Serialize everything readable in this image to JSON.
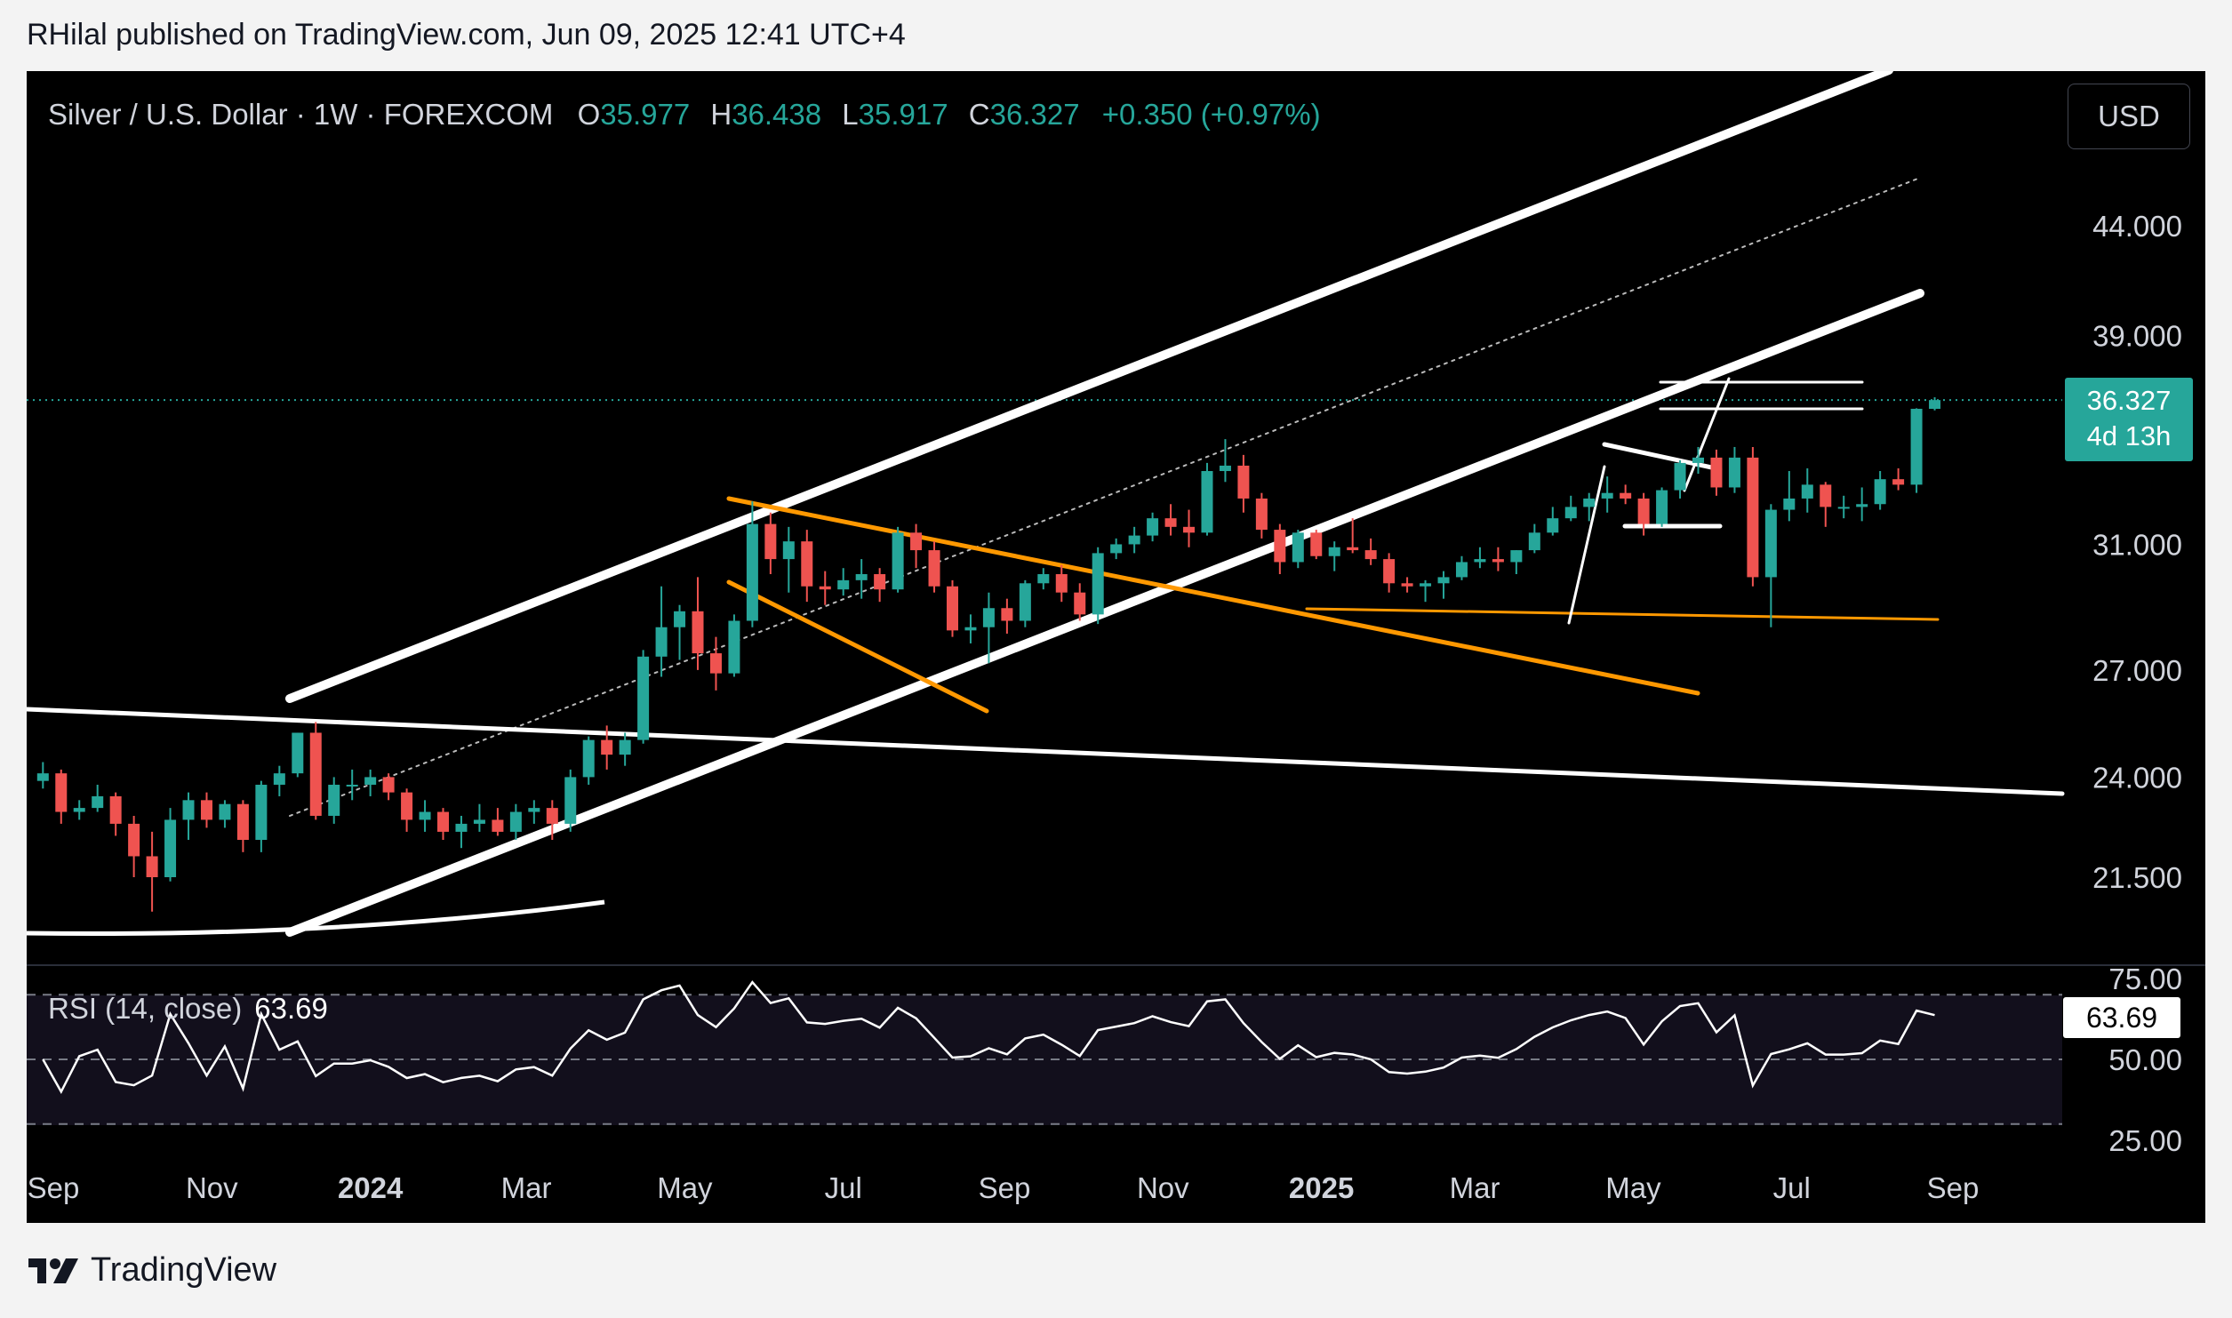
{
  "header": {
    "text": "RHilal published on TradingView.com, Jun 09, 2025 12:41 UTC+4"
  },
  "legend": {
    "symbol": "Silver / U.S. Dollar · 1W · FOREXCOM",
    "o_key": "O",
    "o_val": "35.977",
    "h_key": "H",
    "h_val": "36.438",
    "l_key": "L",
    "l_val": "35.917",
    "c_key": "C",
    "c_val": "36.327",
    "change": "+0.350 (+0.97%)"
  },
  "toolbar": {
    "currency": "USD"
  },
  "price_tag": {
    "price": "36.327",
    "countdown": "4d 13h"
  },
  "rsi": {
    "legend": "RSI (14, close)",
    "value": "63.69"
  },
  "footer": {
    "brand": "TradingView"
  },
  "colors": {
    "up": "#26a69a",
    "down": "#ef5350",
    "channel": "#ffffff",
    "wedge": "#ff9800",
    "background": "#000000"
  },
  "chart_data": {
    "type": "candlestick",
    "interval": "1W",
    "symbol": "Silver / U.S. Dollar",
    "exchange": "FOREXCOM",
    "price_axis": {
      "labels": [
        "44.000",
        "39.000",
        "36.327",
        "31.000",
        "27.000",
        "24.000",
        "21.500"
      ],
      "scale": "log"
    },
    "time_axis": {
      "labels": [
        "Sep",
        "Nov",
        "2024",
        "Mar",
        "May",
        "Jul",
        "Sep",
        "Nov",
        "2025",
        "Mar",
        "May",
        "Jul",
        "Sep"
      ]
    },
    "rsi_axis": {
      "labels": [
        "75.00",
        "50.00",
        "25.00"
      ]
    },
    "series": [
      {
        "name": "",
        "start": "2023-08-28",
        "step_days": 7,
        "candles": [
          [
            23.9,
            24.4,
            23.7,
            24.1
          ],
          [
            24.1,
            24.2,
            22.8,
            23.1
          ],
          [
            23.1,
            23.4,
            22.9,
            23.2
          ],
          [
            23.2,
            23.8,
            23.1,
            23.5
          ],
          [
            23.5,
            23.6,
            22.5,
            22.8
          ],
          [
            22.8,
            23.0,
            21.5,
            22.0
          ],
          [
            22.0,
            22.6,
            20.7,
            21.5
          ],
          [
            21.5,
            23.2,
            21.4,
            22.9
          ],
          [
            22.9,
            23.6,
            22.4,
            23.4
          ],
          [
            23.4,
            23.6,
            22.7,
            22.9
          ],
          [
            22.9,
            23.4,
            22.7,
            23.3
          ],
          [
            23.3,
            23.4,
            22.1,
            22.4
          ],
          [
            22.4,
            23.9,
            22.1,
            23.8
          ],
          [
            23.8,
            24.3,
            23.5,
            24.1
          ],
          [
            24.1,
            25.2,
            24.0,
            25.2
          ],
          [
            25.2,
            25.5,
            22.9,
            23.0
          ],
          [
            23.0,
            24.0,
            22.8,
            23.8
          ],
          [
            23.8,
            24.2,
            23.4,
            23.8
          ],
          [
            23.8,
            24.2,
            23.5,
            24.0
          ],
          [
            24.0,
            24.1,
            23.4,
            23.6
          ],
          [
            23.6,
            23.7,
            22.6,
            22.9
          ],
          [
            22.9,
            23.4,
            22.6,
            23.1
          ],
          [
            23.1,
            23.2,
            22.4,
            22.6
          ],
          [
            22.6,
            23.0,
            22.2,
            22.8
          ],
          [
            22.8,
            23.3,
            22.6,
            22.9
          ],
          [
            22.9,
            23.2,
            22.5,
            22.6
          ],
          [
            22.6,
            23.3,
            22.4,
            23.1
          ],
          [
            23.1,
            23.4,
            22.8,
            23.2
          ],
          [
            23.2,
            23.4,
            22.4,
            22.8
          ],
          [
            22.8,
            24.2,
            22.6,
            24.0
          ],
          [
            24.0,
            25.1,
            23.8,
            25.0
          ],
          [
            25.0,
            25.4,
            24.2,
            24.6
          ],
          [
            24.6,
            25.2,
            24.3,
            25.0
          ],
          [
            25.0,
            27.6,
            24.9,
            27.4
          ],
          [
            27.4,
            29.6,
            26.8,
            28.3
          ],
          [
            28.3,
            29.0,
            27.3,
            28.8
          ],
          [
            28.8,
            29.9,
            27.0,
            27.5
          ],
          [
            27.5,
            28.0,
            26.4,
            26.9
          ],
          [
            26.9,
            28.7,
            26.8,
            28.5
          ],
          [
            28.5,
            32.5,
            28.3,
            31.7
          ],
          [
            31.7,
            32.1,
            30.0,
            30.5
          ],
          [
            30.5,
            31.6,
            29.4,
            31.1
          ],
          [
            31.1,
            31.5,
            29.1,
            29.6
          ],
          [
            29.6,
            30.1,
            29.0,
            29.5
          ],
          [
            29.5,
            30.2,
            29.3,
            29.8
          ],
          [
            29.8,
            30.5,
            29.2,
            30.0
          ],
          [
            30.0,
            30.2,
            29.1,
            29.5
          ],
          [
            29.5,
            31.6,
            29.4,
            31.4
          ],
          [
            31.4,
            31.7,
            30.2,
            30.8
          ],
          [
            30.8,
            31.1,
            29.4,
            29.6
          ],
          [
            29.6,
            29.8,
            28.0,
            28.2
          ],
          [
            28.2,
            28.7,
            27.8,
            28.3
          ],
          [
            28.3,
            29.4,
            27.2,
            28.9
          ],
          [
            28.9,
            29.2,
            28.1,
            28.5
          ],
          [
            28.5,
            29.8,
            28.3,
            29.7
          ],
          [
            29.7,
            30.2,
            29.5,
            30.0
          ],
          [
            30.0,
            30.3,
            29.1,
            29.4
          ],
          [
            29.4,
            29.7,
            28.5,
            28.7
          ],
          [
            28.7,
            30.9,
            28.4,
            30.7
          ],
          [
            30.7,
            31.2,
            30.5,
            31.0
          ],
          [
            31.0,
            31.6,
            30.7,
            31.3
          ],
          [
            31.3,
            32.1,
            31.1,
            31.9
          ],
          [
            31.9,
            32.4,
            31.3,
            31.6
          ],
          [
            31.6,
            32.2,
            30.9,
            31.4
          ],
          [
            31.4,
            33.9,
            31.3,
            33.6
          ],
          [
            33.6,
            34.8,
            33.2,
            33.8
          ],
          [
            33.8,
            34.2,
            32.1,
            32.6
          ],
          [
            32.6,
            32.8,
            31.2,
            31.5
          ],
          [
            31.5,
            31.7,
            30.0,
            30.4
          ],
          [
            30.4,
            31.5,
            30.2,
            31.4
          ],
          [
            31.4,
            31.5,
            30.5,
            30.6
          ],
          [
            30.6,
            31.1,
            30.1,
            30.9
          ],
          [
            30.9,
            31.9,
            30.7,
            30.8
          ],
          [
            30.8,
            31.2,
            30.3,
            30.5
          ],
          [
            30.5,
            30.7,
            29.4,
            29.7
          ],
          [
            29.7,
            29.9,
            29.4,
            29.6
          ],
          [
            29.6,
            29.8,
            29.1,
            29.7
          ],
          [
            29.7,
            30.1,
            29.2,
            29.9
          ],
          [
            29.9,
            30.6,
            29.8,
            30.4
          ],
          [
            30.4,
            30.9,
            30.2,
            30.5
          ],
          [
            30.5,
            30.9,
            30.1,
            30.4
          ],
          [
            30.4,
            30.8,
            30.0,
            30.8
          ],
          [
            30.8,
            31.7,
            30.7,
            31.4
          ],
          [
            31.4,
            32.3,
            31.3,
            31.9
          ],
          [
            31.9,
            32.7,
            31.8,
            32.3
          ],
          [
            32.3,
            32.8,
            31.8,
            32.6
          ],
          [
            32.6,
            33.4,
            32.1,
            32.8
          ],
          [
            32.8,
            33.1,
            32.4,
            32.6
          ],
          [
            32.6,
            32.8,
            31.3,
            31.7
          ],
          [
            31.7,
            33.0,
            31.6,
            32.9
          ],
          [
            32.9,
            34.0,
            32.6,
            33.9
          ],
          [
            33.9,
            34.5,
            33.5,
            34.1
          ],
          [
            34.1,
            34.4,
            32.7,
            33.0
          ],
          [
            33.0,
            34.5,
            32.8,
            34.1
          ],
          [
            34.1,
            34.5,
            29.6,
            29.9
          ],
          [
            29.9,
            32.4,
            28.3,
            32.2
          ],
          [
            32.2,
            33.6,
            31.8,
            32.6
          ],
          [
            32.6,
            33.7,
            32.1,
            33.1
          ],
          [
            33.1,
            33.2,
            31.6,
            32.3
          ],
          [
            32.3,
            32.7,
            31.9,
            32.3
          ],
          [
            32.3,
            33.0,
            31.8,
            32.4
          ],
          [
            32.4,
            33.6,
            32.2,
            33.3
          ],
          [
            33.3,
            33.7,
            32.9,
            33.1
          ],
          [
            33.1,
            36.0,
            32.8,
            35.98
          ],
          [
            35.977,
            36.438,
            35.917,
            36.327
          ]
        ]
      }
    ],
    "rsi_series": {
      "name": "RSI (14, close)",
      "last": 63.69,
      "overbought": 70,
      "middle": 50,
      "oversold": 30
    }
  }
}
